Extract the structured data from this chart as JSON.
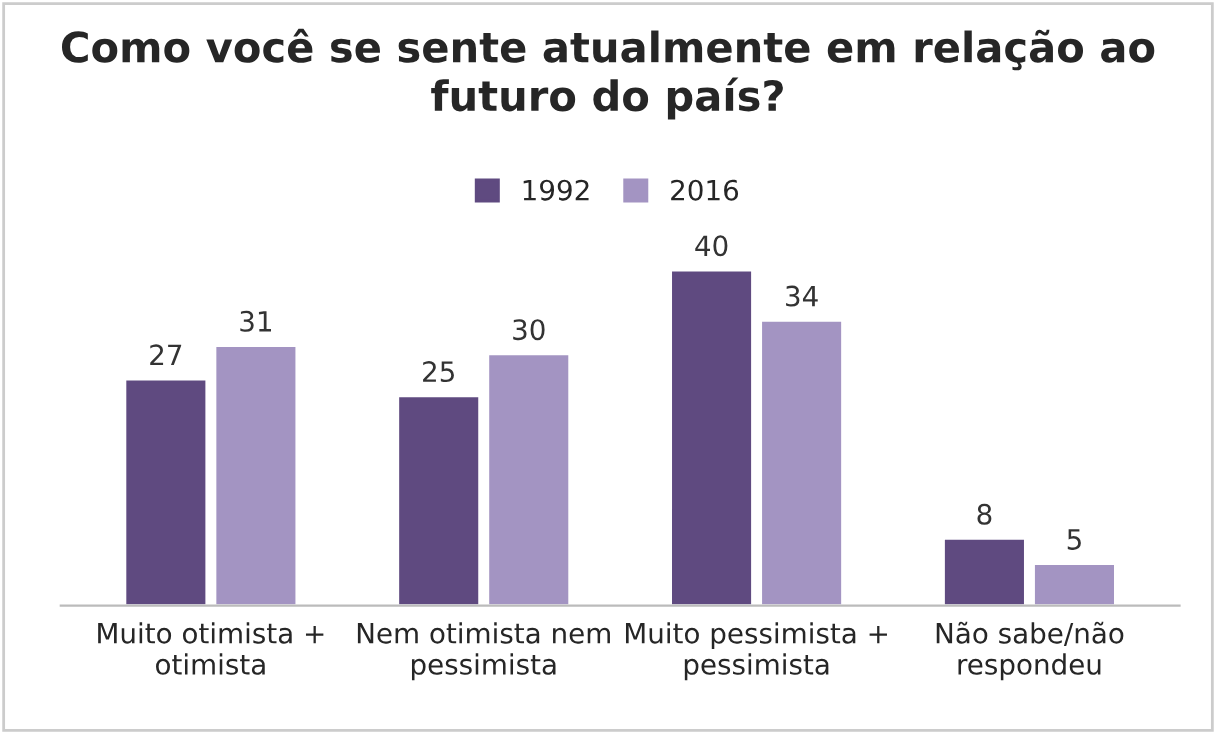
{
  "chart_data": {
    "type": "bar",
    "title": "Como você se sente atualmente em relação ao futuro do país?",
    "categories": [
      "Muito otimista +\notimista",
      "Nem otimista nem\npessimista",
      "Muito pessimista +\npessimista",
      "Não sabe/não\nrespondeu"
    ],
    "series": [
      {
        "name": "1992",
        "color": "#5f4a80",
        "values": [
          27,
          25,
          40,
          8
        ]
      },
      {
        "name": "2016",
        "color": "#a394c2",
        "values": [
          31,
          30,
          34,
          5
        ]
      }
    ],
    "data_labels": true,
    "legend": "top",
    "grid": false
  }
}
